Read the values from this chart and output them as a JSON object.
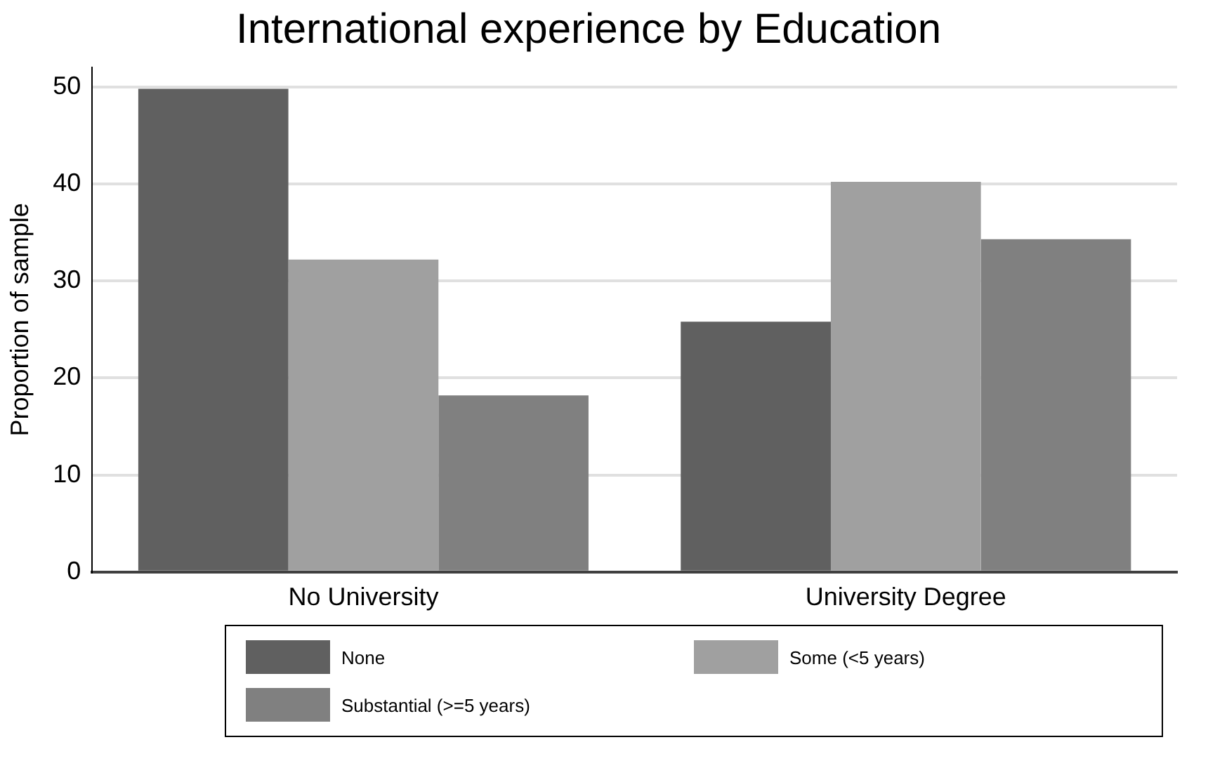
{
  "chart_data": {
    "type": "bar",
    "title": "International experience by Education",
    "ylabel": "Proportion of sample",
    "categories": [
      "No University",
      "University Degree"
    ],
    "series": [
      {
        "name": "None",
        "color": "#606060",
        "values": [
          49.8,
          25.8
        ]
      },
      {
        "name": "Some (<5 years)",
        "color": "#a0a0a0",
        "values": [
          32.2,
          40.2
        ]
      },
      {
        "name": "Substantial (>=5 years)",
        "color": "#808080",
        "values": [
          18.2,
          34.3
        ]
      }
    ],
    "ylim": [
      0,
      52
    ],
    "yticks": [
      0,
      10,
      20,
      30,
      40,
      50
    ],
    "grid": "y",
    "legend": "bottom"
  }
}
